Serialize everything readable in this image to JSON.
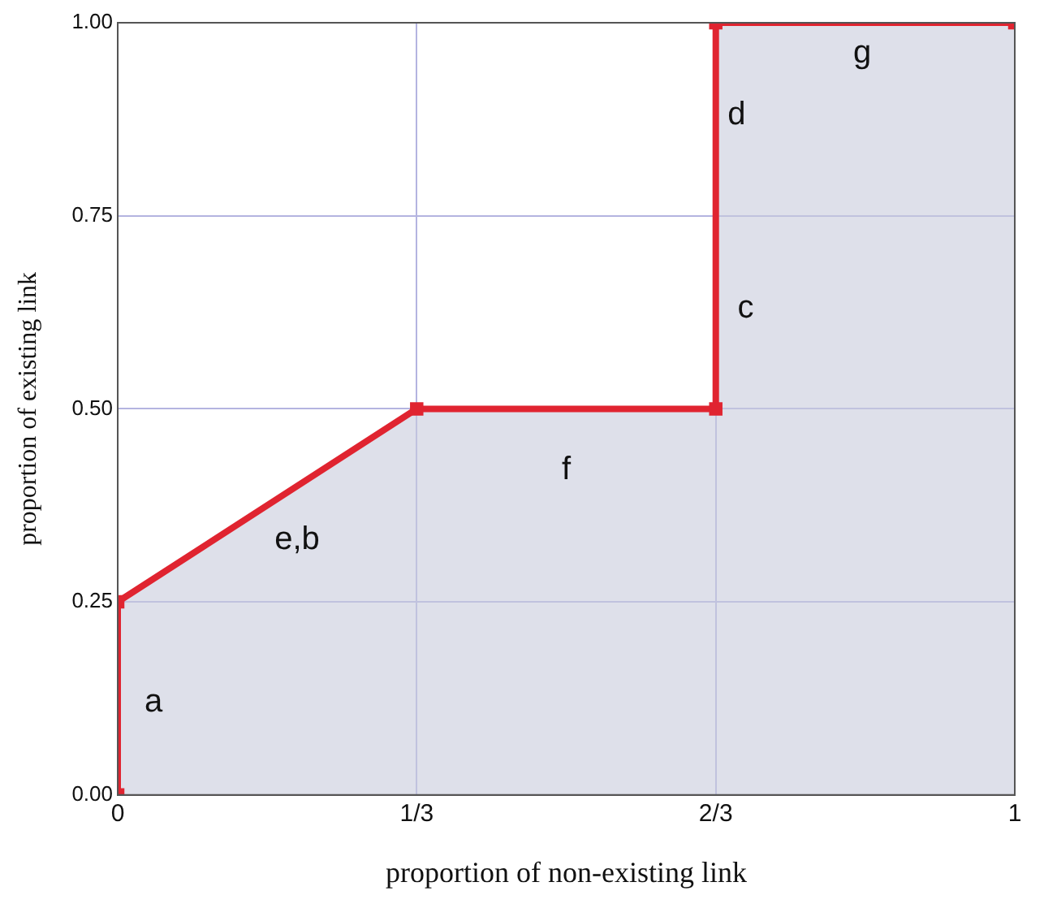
{
  "chart_data": {
    "type": "area",
    "xlabel": "proportion of non-existing link",
    "ylabel": "proportion of existing link",
    "x": [
      0,
      0,
      0.3333,
      0.6667,
      0.6667,
      1
    ],
    "series": [
      {
        "color": "#e02430",
        "values": [
          0,
          0.25,
          0.5,
          0.5,
          1,
          1
        ]
      }
    ],
    "xlim": [
      0,
      1
    ],
    "xticks": [
      0,
      {
        "value": 0.3333,
        "label": "1/3"
      },
      {
        "value": 0.6667,
        "label": "2/3"
      },
      1
    ],
    "ylim": [
      0,
      1
    ],
    "yticks": [
      {
        "value": 0,
        "label": "0.00"
      },
      {
        "value": 0.25,
        "label": "0.25"
      },
      {
        "value": 0.5,
        "label": "0.50"
      },
      {
        "value": 0.75,
        "label": "0.75"
      },
      {
        "value": 1,
        "label": "1.00"
      }
    ],
    "grid": true,
    "legend": false,
    "marker": "square",
    "line_style": "solid",
    "annotations": [
      "a",
      "e,b",
      "f",
      "c",
      "d",
      "g"
    ]
  }
}
